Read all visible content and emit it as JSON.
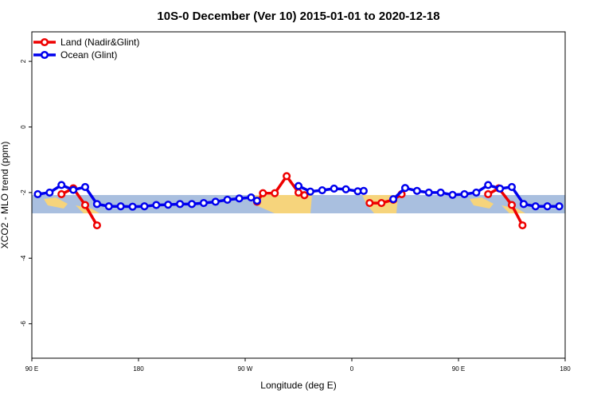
{
  "chart_data": {
    "type": "line",
    "title": "10S-0 December (Ver 10)   2015-01-01 to 2020-12-18",
    "x_label": "Longitude (deg E)",
    "y_label": "XCO2 - MLO trend (ppm)",
    "xlim": [
      90,
      540
    ],
    "ylim": [
      -7.05,
      2.9
    ],
    "xticks": [
      {
        "value": 90,
        "label": "90 E"
      },
      180,
      {
        "value": 270,
        "label": "90 W"
      },
      {
        "value": 360,
        "label": "0"
      },
      {
        "value": 450,
        "label": "90 E"
      },
      {
        "value": 540,
        "label": "180"
      }
    ],
    "yticks": [
      2,
      0,
      -2,
      -4,
      -6
    ],
    "legend": "top-left",
    "series": [
      {
        "name": "Land (Nadir&Glint)",
        "color": "#ee0000",
        "x": [
          115,
          125,
          135,
          145,
          200,
          280,
          285,
          295,
          305,
          315,
          320,
          350,
          375,
          385,
          395,
          402,
          440,
          475,
          484,
          495,
          504
        ],
        "values": [
          -2.05,
          -1.87,
          -2.38,
          -3.0,
          null,
          -2.28,
          -2.02,
          -2.02,
          -1.5,
          -2.0,
          -2.08,
          null,
          -2.32,
          -2.32,
          -2.22,
          -2.05,
          null,
          -2.05,
          -1.87,
          -2.38,
          -3.0
        ]
      },
      {
        "name": "Ocean (Glint)",
        "color": "#0000ee",
        "x": [
          95,
          105,
          115,
          125,
          135,
          145,
          155,
          165,
          175,
          185,
          195,
          205,
          215,
          225,
          235,
          245,
          255,
          265,
          275,
          280,
          300,
          315,
          325,
          335,
          345,
          355,
          365,
          370,
          380,
          395,
          405,
          415,
          425,
          435,
          445,
          455,
          465,
          475,
          485,
          495,
          505,
          515,
          525,
          535
        ],
        "values": [
          -2.05,
          -2.0,
          -1.77,
          -1.92,
          -1.83,
          -2.35,
          -2.42,
          -2.42,
          -2.43,
          -2.42,
          -2.38,
          -2.37,
          -2.35,
          -2.35,
          -2.32,
          -2.28,
          -2.22,
          -2.18,
          -2.15,
          -2.25,
          null,
          -1.8,
          -1.97,
          -1.93,
          -1.88,
          -1.9,
          -1.96,
          -1.95,
          null,
          -2.2,
          -1.86,
          -1.95,
          -2.0,
          -2.0,
          -2.07,
          -2.05,
          -2.0,
          -1.77,
          -1.88,
          -1.83,
          -2.35,
          -2.42,
          -2.42,
          -2.42
        ]
      }
    ]
  }
}
